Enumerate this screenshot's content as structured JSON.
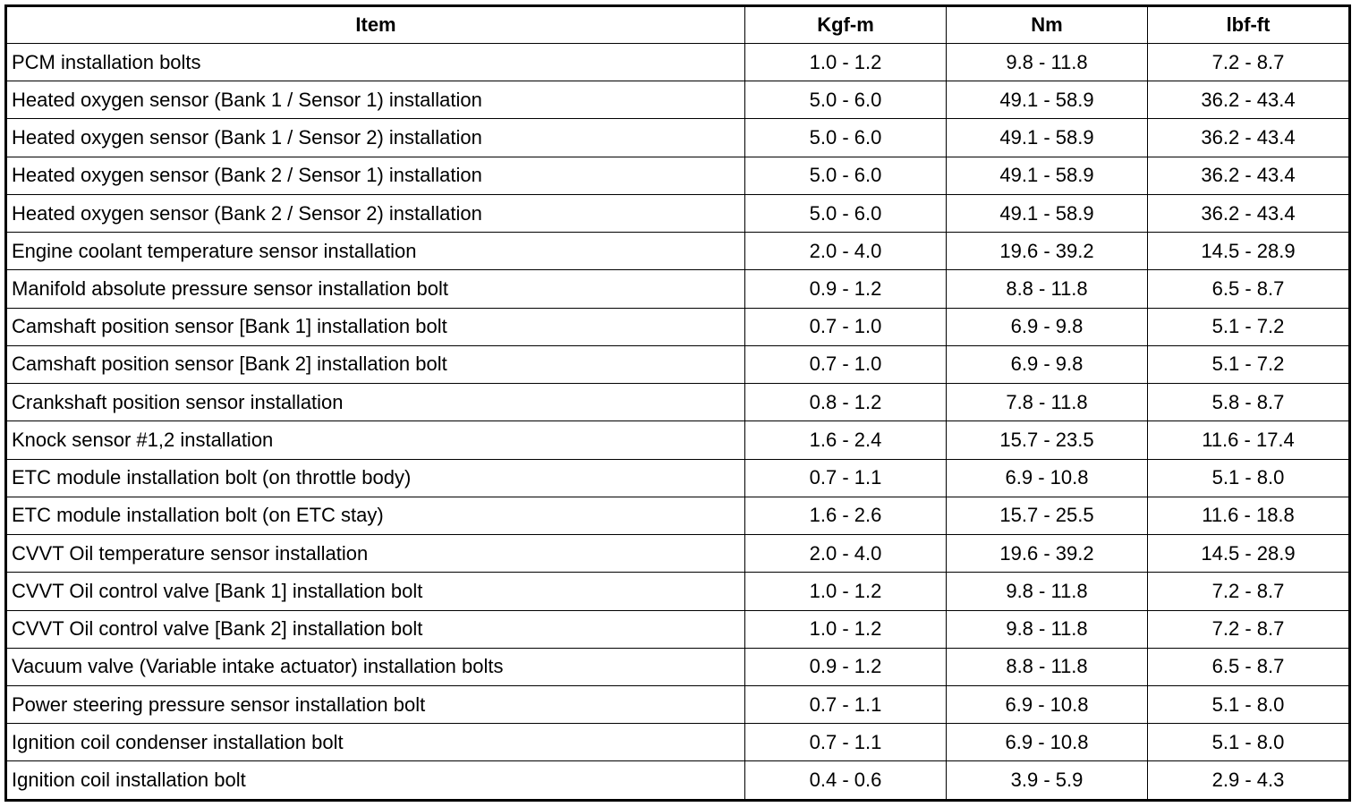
{
  "table": {
    "header": [
      "Item",
      "Kgf-m",
      "Nm",
      "lbf-ft"
    ],
    "rows": [
      [
        "PCM installation bolts",
        "1.0 - 1.2",
        "9.8 - 11.8",
        "7.2 - 8.7"
      ],
      [
        "Heated oxygen sensor (Bank 1 / Sensor 1) installation",
        "5.0 - 6.0",
        "49.1 - 58.9",
        "36.2 - 43.4"
      ],
      [
        "Heated oxygen sensor (Bank 1 / Sensor 2) installation",
        "5.0 - 6.0",
        "49.1 - 58.9",
        "36.2 - 43.4"
      ],
      [
        "Heated oxygen sensor (Bank 2 / Sensor 1) installation",
        "5.0 - 6.0",
        "49.1 - 58.9",
        "36.2 - 43.4"
      ],
      [
        "Heated oxygen sensor (Bank 2 / Sensor 2) installation",
        "5.0 - 6.0",
        "49.1 - 58.9",
        "36.2 - 43.4"
      ],
      [
        "Engine coolant temperature sensor installation",
        "2.0 - 4.0",
        "19.6 - 39.2",
        "14.5 - 28.9"
      ],
      [
        "Manifold absolute pressure sensor installation bolt",
        "0.9 - 1.2",
        "8.8 - 11.8",
        "6.5 - 8.7"
      ],
      [
        "Camshaft position sensor [Bank 1] installation bolt",
        "0.7 - 1.0",
        "6.9 - 9.8",
        "5.1 - 7.2"
      ],
      [
        "Camshaft position sensor [Bank 2] installation bolt",
        "0.7 - 1.0",
        "6.9 - 9.8",
        "5.1 - 7.2"
      ],
      [
        "Crankshaft position sensor installation",
        "0.8 - 1.2",
        "7.8 - 11.8",
        "5.8 - 8.7"
      ],
      [
        "Knock sensor #1,2 installation",
        "1.6 - 2.4",
        "15.7 - 23.5",
        "11.6 - 17.4"
      ],
      [
        "ETC module installation bolt (on throttle body)",
        "0.7 - 1.1",
        "6.9 - 10.8",
        "5.1 - 8.0"
      ],
      [
        "ETC module installation bolt (on ETC stay)",
        "1.6 - 2.6",
        "15.7 - 25.5",
        "11.6 - 18.8"
      ],
      [
        "CVVT Oil temperature sensor installation",
        "2.0 - 4.0",
        "19.6 - 39.2",
        "14.5 - 28.9"
      ],
      [
        "CVVT Oil control valve [Bank 1] installation bolt",
        "1.0 - 1.2",
        "9.8 - 11.8",
        "7.2 - 8.7"
      ],
      [
        "CVVT Oil control valve [Bank 2] installation bolt",
        "1.0 - 1.2",
        "9.8 - 11.8",
        "7.2 - 8.7"
      ],
      [
        "Vacuum valve (Variable intake actuator) installation bolts",
        "0.9 - 1.2",
        "8.8 - 11.8",
        "6.5 - 8.7"
      ],
      [
        "Power steering pressure sensor installation bolt",
        "0.7 - 1.1",
        "6.9 - 10.8",
        "5.1 - 8.0"
      ],
      [
        "Ignition coil condenser installation bolt",
        "0.7 - 1.1",
        "6.9 - 10.8",
        "5.1 - 8.0"
      ],
      [
        "Ignition coil installation bolt",
        "0.4 - 0.6",
        "3.9 - 5.9",
        "2.9 - 4.3"
      ]
    ]
  }
}
